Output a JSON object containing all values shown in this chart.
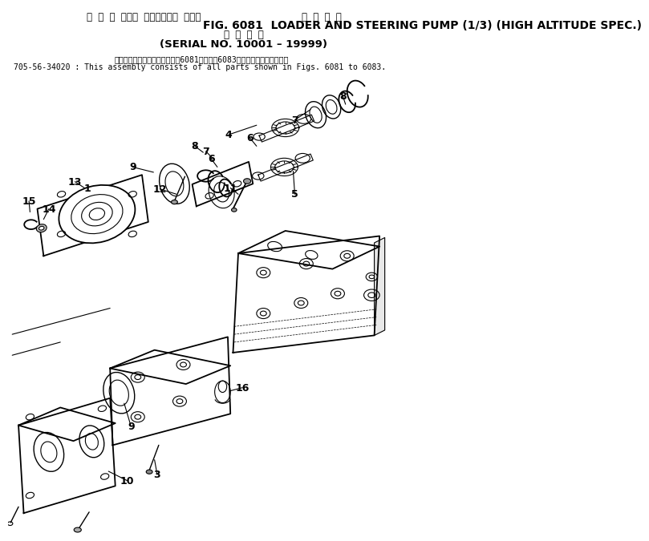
{
  "title_line1_jp": "ロ ー ダ および ステアリング ポンプ",
  "title_line1_right_jp": "高 地 仕 様",
  "title_line2": "FIG. 6081  LOADER AND STEERING PUMP (1/3) (HIGH ALTITUDE SPEC.)",
  "title_line3_jp": "適 用 号 機",
  "title_line4": "(SERIAL NO. 10001 – 19999)",
  "note_jp": "このアセンブリの構成部品は第6081図から第6083図の部品まで含みます。",
  "note_en": "705-56-34020 : This assembly consists of all parts shown in Figs. 6081 to 6083.",
  "bg_color": "#ffffff",
  "text_color": "#000000"
}
